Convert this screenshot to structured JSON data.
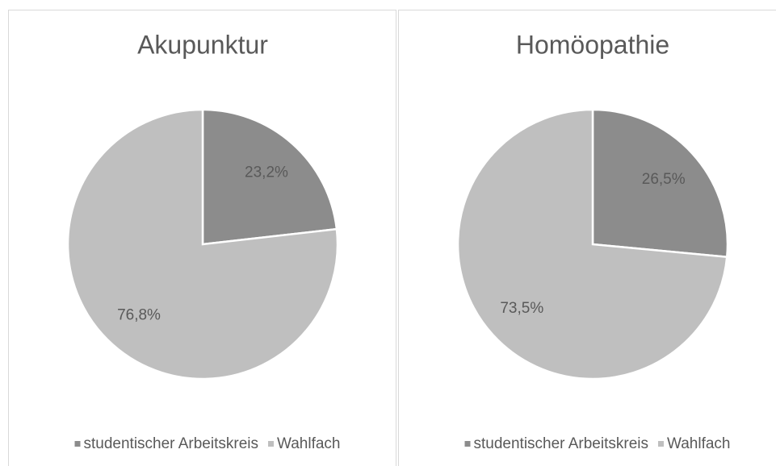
{
  "chart_data": [
    {
      "type": "pie",
      "title": "Akupunktur",
      "categories": [
        "studentischer Arbeitskreis",
        "Wahlfach"
      ],
      "values": [
        23.2,
        76.8
      ],
      "value_labels": [
        "23,2%",
        "76,8%"
      ],
      "colors": [
        "#8c8c8c",
        "#bfbfbf"
      ],
      "legend": "bottom"
    },
    {
      "type": "pie",
      "title": "Homöopathie",
      "categories": [
        "studentischer Arbeitskreis",
        "Wahlfach"
      ],
      "values": [
        26.5,
        73.5
      ],
      "value_labels": [
        "26,5%",
        "73,5%"
      ],
      "colors": [
        "#8c8c8c",
        "#bfbfbf"
      ],
      "legend": "bottom"
    }
  ]
}
